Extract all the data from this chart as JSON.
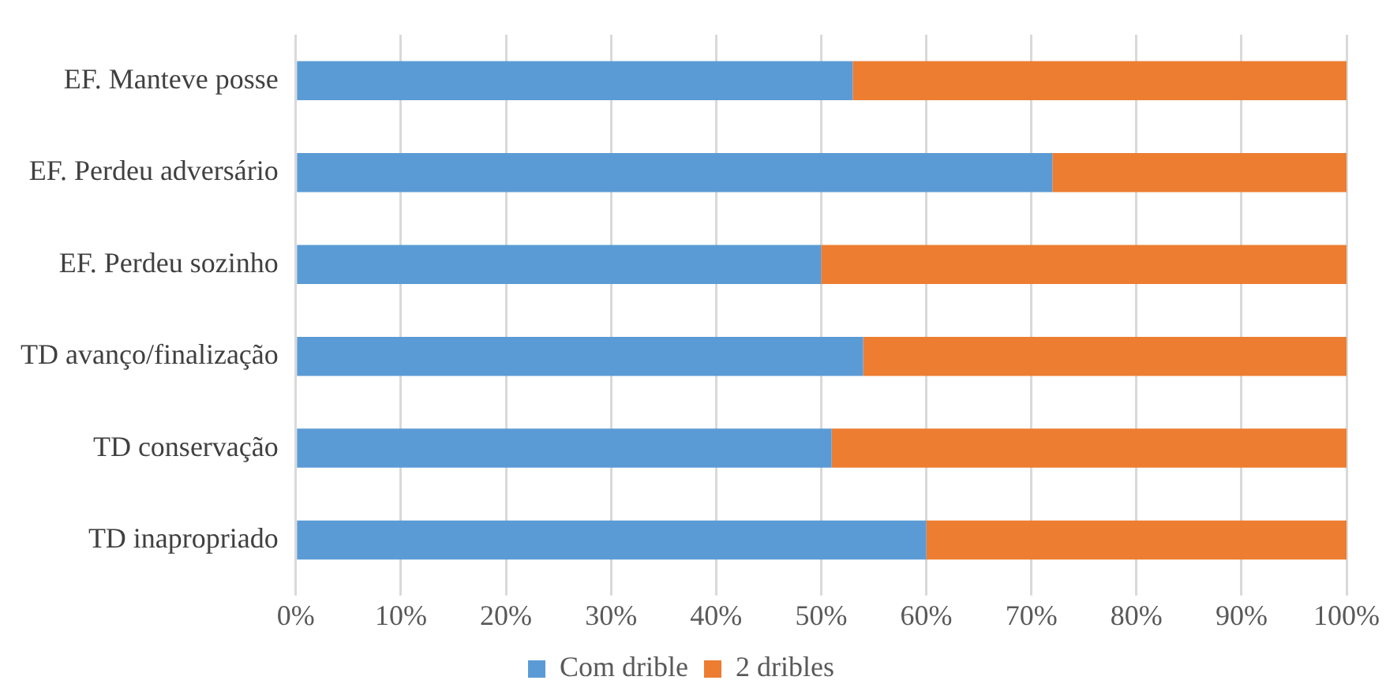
{
  "chart_data": {
    "type": "bar",
    "orientation": "horizontal",
    "stacked": true,
    "categories": [
      "EF. Manteve posse",
      "EF. Perdeu adversário",
      "EF. Perdeu sozinho",
      "TD avanço/finalização",
      "TD conservação",
      "TD inapropriado"
    ],
    "series": [
      {
        "name": "Com drible",
        "color": "#5b9bd5",
        "values": [
          53,
          72,
          50,
          54,
          51,
          60
        ]
      },
      {
        "name": "2 dribles",
        "color": "#ed7d31",
        "values": [
          47,
          28,
          50,
          46,
          49,
          40
        ]
      }
    ],
    "xlim": [
      0,
      100
    ],
    "xticks": [
      {
        "value": 0,
        "label": "0%"
      },
      {
        "value": 10,
        "label": "10%"
      },
      {
        "value": 20,
        "label": "20%"
      },
      {
        "value": 30,
        "label": "30%"
      },
      {
        "value": 40,
        "label": "40%"
      },
      {
        "value": 50,
        "label": "50%"
      },
      {
        "value": 60,
        "label": "60%"
      },
      {
        "value": 70,
        "label": "70%"
      },
      {
        "value": 80,
        "label": "80%"
      },
      {
        "value": 90,
        "label": "90%"
      },
      {
        "value": 100,
        "label": "100%"
      }
    ],
    "grid": "x",
    "legend": "bottom"
  }
}
